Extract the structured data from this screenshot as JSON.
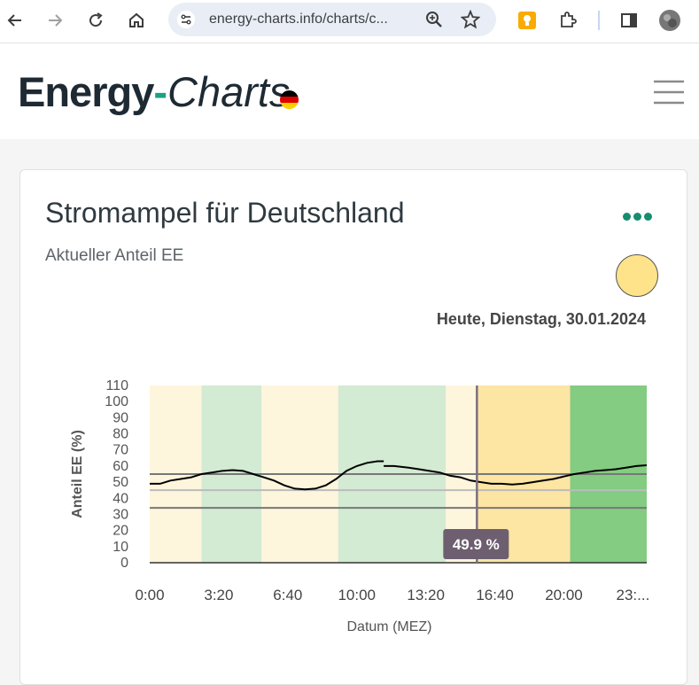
{
  "browser": {
    "url": "energy-charts.info/charts/c..."
  },
  "site": {
    "logo_main": "Energy",
    "logo_dash": "-",
    "logo_accent": "Charts"
  },
  "card": {
    "title": "Stromampel für Deutschland",
    "subtitle": "Aktueller Anteil EE",
    "date_label": "Heute, Dienstag, 30.01.2024",
    "traffic_light_color": "#ffe38a"
  },
  "chart_data": {
    "type": "line",
    "xlabel": "Datum (MEZ)",
    "ylabel": "Anteil EE (%)",
    "ylim": [
      0,
      110
    ],
    "xlim_hours": [
      0,
      24
    ],
    "y_ticks": [
      "0",
      "10",
      "20",
      "30",
      "40",
      "50",
      "60",
      "70",
      "80",
      "90",
      "100",
      "110"
    ],
    "x_ticks": [
      {
        "hour": 0,
        "label": "0:00"
      },
      {
        "hour": 3.333,
        "label": "3:20"
      },
      {
        "hour": 6.667,
        "label": "6:40"
      },
      {
        "hour": 10,
        "label": "10:00"
      },
      {
        "hour": 13.333,
        "label": "13:20"
      },
      {
        "hour": 16.667,
        "label": "16:40"
      },
      {
        "hour": 20,
        "label": "20:00"
      },
      {
        "hour": 23.333,
        "label": "23:..."
      }
    ],
    "bands": [
      {
        "from": 0,
        "to": 2.5,
        "color": "#fdf5dc"
      },
      {
        "from": 2.5,
        "to": 5.4,
        "color": "#d3ead3"
      },
      {
        "from": 5.4,
        "to": 9.1,
        "color": "#fdf5dc"
      },
      {
        "from": 9.1,
        "to": 14.3,
        "color": "#d3ead3"
      },
      {
        "from": 14.3,
        "to": 15.8,
        "color": "#fdf5dc"
      },
      {
        "from": 15.8,
        "to": 20.3,
        "color": "#fde5a3"
      },
      {
        "from": 20.3,
        "to": 24,
        "color": "#83cc82"
      }
    ],
    "reference_lines": [
      {
        "y": 55,
        "color": "#777777"
      },
      {
        "y": 45,
        "color": "#bbbbbb"
      },
      {
        "y": 34,
        "color": "#777777"
      }
    ],
    "series": [
      {
        "segments": [
          [
            [
              0,
              49
            ],
            [
              0.5,
              49
            ],
            [
              1,
              51
            ],
            [
              1.5,
              52
            ],
            [
              2,
              53
            ],
            [
              2.5,
              55
            ],
            [
              3,
              56
            ],
            [
              3.5,
              57
            ],
            [
              4,
              57.5
            ],
            [
              4.5,
              57
            ],
            [
              5,
              55
            ],
            [
              5.5,
              53
            ],
            [
              6,
              51
            ],
            [
              6.5,
              48
            ],
            [
              7,
              46
            ],
            [
              7.5,
              45.5
            ],
            [
              8,
              46
            ],
            [
              8.5,
              48
            ],
            [
              9,
              52
            ],
            [
              9.5,
              57
            ],
            [
              10,
              60
            ],
            [
              10.5,
              62
            ],
            [
              11,
              63
            ],
            [
              11.3,
              63
            ]
          ],
          [
            [
              11.3,
              60
            ],
            [
              11.8,
              60
            ],
            [
              12.5,
              59
            ],
            [
              13,
              58
            ],
            [
              13.5,
              57
            ],
            [
              14,
              56
            ],
            [
              14.5,
              54
            ],
            [
              15,
              53
            ],
            [
              15.5,
              51
            ],
            [
              16,
              50
            ],
            [
              16.5,
              49
            ],
            [
              17,
              49
            ],
            [
              17.5,
              48.5
            ],
            [
              18,
              49
            ],
            [
              18.5,
              50
            ],
            [
              19,
              51
            ],
            [
              19.5,
              52
            ],
            [
              20,
              53.5
            ],
            [
              20.5,
              55
            ],
            [
              21,
              56
            ],
            [
              21.5,
              57
            ],
            [
              22,
              57.5
            ],
            [
              22.5,
              58
            ],
            [
              23,
              59
            ],
            [
              23.5,
              60
            ],
            [
              24,
              60.5
            ]
          ]
        ]
      }
    ],
    "marker": {
      "hour": 15.8,
      "label": "49.9 %"
    }
  }
}
